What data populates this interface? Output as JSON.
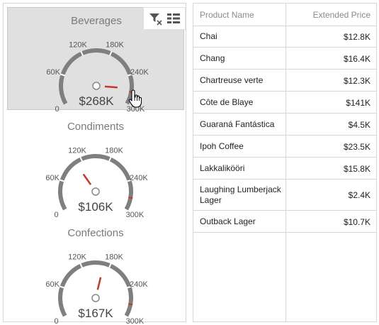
{
  "gauges": [
    {
      "title": "Beverages",
      "value": 268,
      "value_label": "$268K",
      "selected": true
    },
    {
      "title": "Condiments",
      "value": 106,
      "value_label": "$106K",
      "selected": false
    },
    {
      "title": "Confections",
      "value": 167,
      "value_label": "$167K",
      "selected": false
    }
  ],
  "gauge_scale": {
    "min": 0,
    "max": 300,
    "target": 275,
    "tick_labels": [
      "0",
      "60K",
      "120K",
      "180K",
      "240K",
      "300K"
    ]
  },
  "toolbar": {
    "icons": [
      "clear-filter-icon",
      "multi-select-icon"
    ]
  },
  "grid": {
    "columns": [
      "Product Name",
      "Extended Price"
    ],
    "rows": [
      {
        "name": "Chai",
        "price": "$12.8K"
      },
      {
        "name": "Chang",
        "price": "$16.4K"
      },
      {
        "name": "Chartreuse verte",
        "price": "$12.3K"
      },
      {
        "name": "Côte de Blaye",
        "price": "$141K"
      },
      {
        "name": "Guaraná Fantástica",
        "price": "$4.5K"
      },
      {
        "name": "Ipoh Coffee",
        "price": "$23.5K"
      },
      {
        "name": "Lakkalikööri",
        "price": "$15.8K"
      },
      {
        "name": "Laughing Lumberjack Lager",
        "price": "$2.4K"
      },
      {
        "name": "Outback Lager",
        "price": "$10.7K"
      }
    ]
  },
  "colors": {
    "arc": "#7f7f7f",
    "needle": "#c0392b",
    "target": "#c0392b",
    "selected_bg": "#e0e0e0"
  }
}
